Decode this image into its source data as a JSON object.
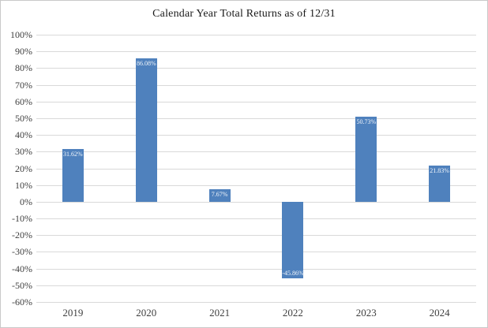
{
  "window": {
    "background": "#ffffff",
    "border_color": "#c9c9c9"
  },
  "chart_data": {
    "type": "bar",
    "title": "Calendar Year Total Returns as of 12/31",
    "categories": [
      "2019",
      "2020",
      "2021",
      "2022",
      "2023",
      "2024"
    ],
    "values": [
      31.62,
      86.08,
      7.67,
      -45.86,
      50.73,
      21.83
    ],
    "data_labels": [
      "31.62%",
      "86.08%",
      "7.67%",
      "-45.86%",
      "50.73%",
      "21.83%"
    ],
    "data_label_position": "inside-end",
    "data_label_color": "#f2f6fb",
    "xlabel": "",
    "ylabel": "",
    "ylim": [
      -60,
      100
    ],
    "ytick_step": 10,
    "ytick_labels": [
      "100%",
      "90%",
      "80%",
      "70%",
      "60%",
      "50%",
      "40%",
      "30%",
      "20%",
      "10%",
      "0%",
      "-10%",
      "-20%",
      "-30%",
      "-40%",
      "-50%",
      "-60%"
    ],
    "grid": true,
    "gridline_color": "#d9d9d9",
    "bar_color": "#4f81bd",
    "legend_position": "none"
  }
}
